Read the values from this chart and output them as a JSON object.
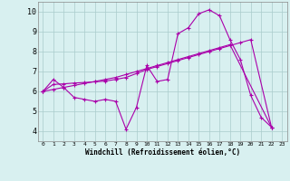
{
  "xlabel": "Windchill (Refroidissement éolien,°C)",
  "ylabel": "",
  "background_color": "#d8f0f0",
  "line_color": "#aa00aa",
  "xlim": [
    -0.5,
    23.5
  ],
  "ylim": [
    3.5,
    10.5
  ],
  "xticks": [
    0,
    1,
    2,
    3,
    4,
    5,
    6,
    7,
    8,
    9,
    10,
    11,
    12,
    13,
    14,
    15,
    16,
    17,
    18,
    19,
    20,
    21,
    22,
    23
  ],
  "yticks": [
    4,
    5,
    6,
    7,
    8,
    9,
    10
  ],
  "grid_color": "#aacccc",
  "series": [
    {
      "x": [
        0,
        1,
        2,
        3,
        4,
        5,
        6,
        7,
        8,
        9,
        10,
        11,
        12,
        13,
        14,
        15,
        16,
        17,
        18,
        19,
        20,
        21,
        22
      ],
      "y": [
        6.0,
        6.6,
        6.2,
        5.7,
        5.6,
        5.5,
        5.6,
        5.5,
        4.1,
        5.2,
        7.3,
        6.5,
        6.6,
        8.9,
        9.2,
        9.9,
        10.1,
        9.8,
        8.6,
        7.6,
        5.8,
        4.7,
        4.2
      ]
    },
    {
      "x": [
        0,
        1,
        2,
        3,
        4,
        5,
        6,
        7,
        8,
        9,
        10,
        11,
        12,
        13,
        14,
        15,
        16,
        17,
        18,
        19,
        20,
        22
      ],
      "y": [
        6.0,
        6.35,
        6.38,
        6.42,
        6.45,
        6.48,
        6.52,
        6.6,
        6.7,
        6.9,
        7.1,
        7.25,
        7.4,
        7.55,
        7.7,
        7.85,
        8.0,
        8.15,
        8.3,
        8.45,
        8.6,
        4.2
      ]
    },
    {
      "x": [
        0,
        1,
        2,
        3,
        4,
        5,
        6,
        7,
        8,
        9,
        10,
        11,
        12,
        13,
        14,
        15,
        16,
        17,
        18,
        22
      ],
      "y": [
        6.0,
        6.1,
        6.2,
        6.3,
        6.4,
        6.5,
        6.6,
        6.7,
        6.85,
        7.0,
        7.15,
        7.3,
        7.45,
        7.6,
        7.75,
        7.9,
        8.05,
        8.2,
        8.35,
        4.2
      ]
    }
  ],
  "marker": "+",
  "xlabel_fontsize": 5.5,
  "tick_fontsize_x": 4.5,
  "tick_fontsize_y": 6.0,
  "linewidth": 0.8,
  "markersize": 3
}
